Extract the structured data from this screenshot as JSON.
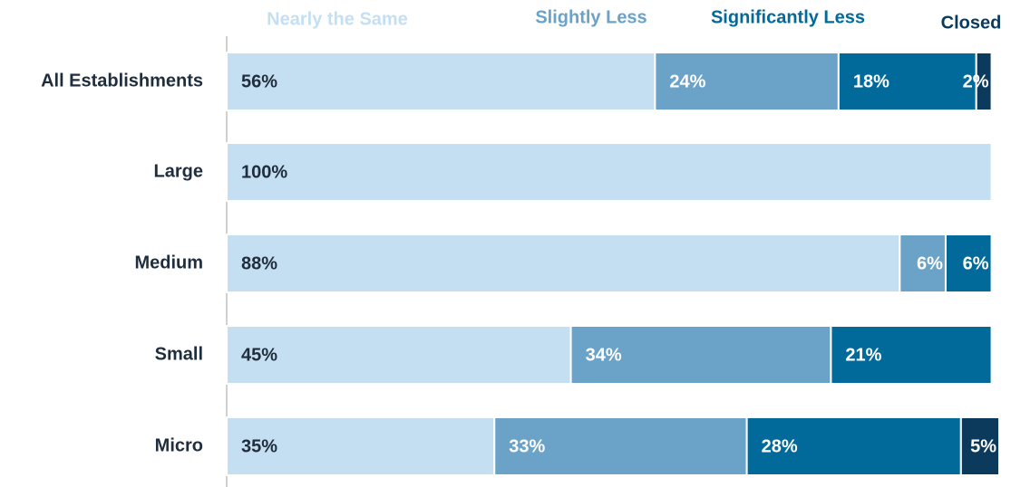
{
  "chart_data": {
    "type": "stacked-bar",
    "orientation": "horizontal",
    "categories": [
      "All Establishments",
      "Large",
      "Medium",
      "Small",
      "Micro"
    ],
    "series": [
      {
        "name": "Nearly the Same",
        "color": "#c5dff2",
        "label_color": "#1f2d3d",
        "values": [
          56,
          100,
          88,
          45,
          35
        ],
        "value_labels": [
          "56%",
          "100%",
          "88%",
          "45%",
          "35%"
        ]
      },
      {
        "name": "Slightly Less",
        "color": "#6aa2c8",
        "label_color": "#ffffff",
        "values": [
          24,
          null,
          6,
          34,
          33
        ],
        "value_labels": [
          "24%",
          null,
          "6%",
          "34%",
          "33%"
        ]
      },
      {
        "name": "Significantly Less",
        "color": "#026a9a",
        "label_color": "#ffffff",
        "values": [
          18,
          null,
          6,
          21,
          28
        ],
        "value_labels": [
          "18%",
          null,
          "6%",
          "21%",
          "28%"
        ]
      },
      {
        "name": "Closed",
        "color": "#0b3a5c",
        "label_color": "#ffffff",
        "values": [
          2,
          null,
          null,
          null,
          5
        ],
        "value_labels": [
          "2%",
          null,
          null,
          null,
          "5%"
        ]
      }
    ],
    "legend": "top"
  }
}
